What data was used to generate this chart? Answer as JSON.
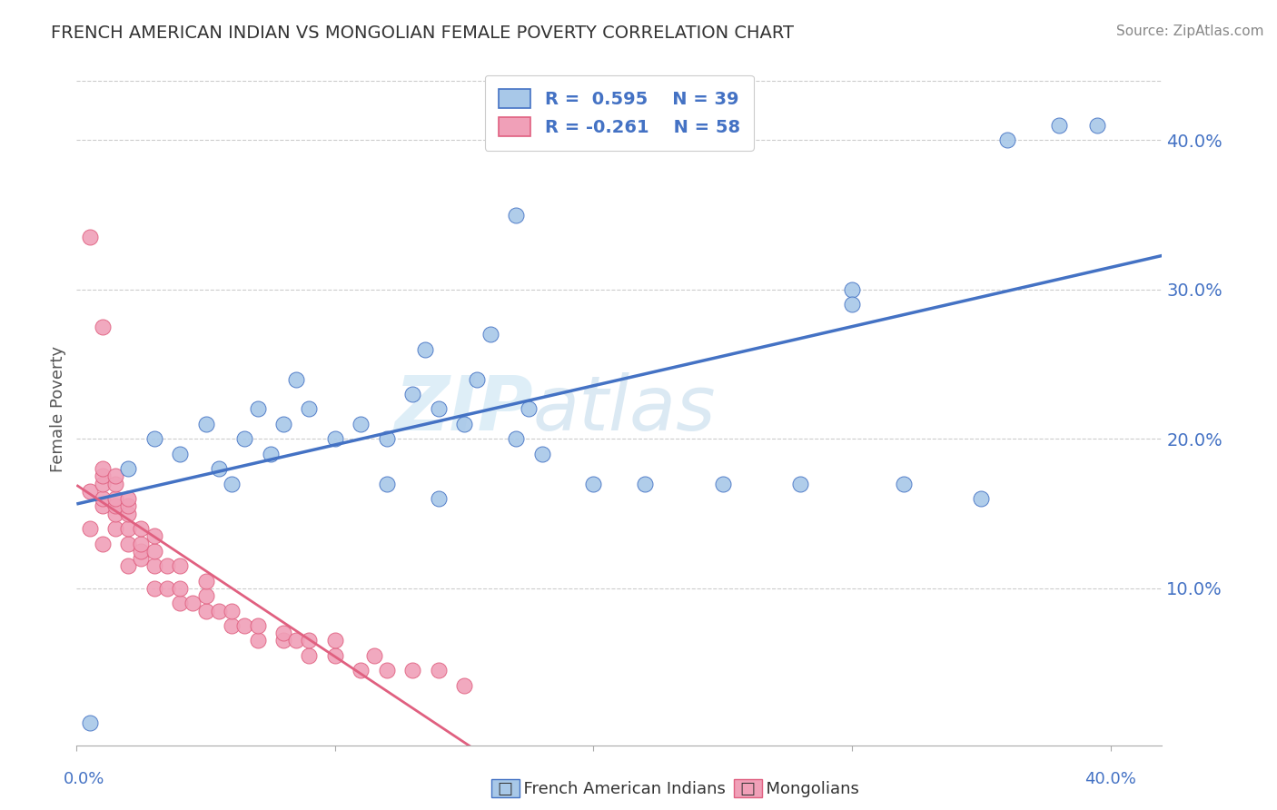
{
  "title": "FRENCH AMERICAN INDIAN VS MONGOLIAN FEMALE POVERTY CORRELATION CHART",
  "source": "Source: ZipAtlas.com",
  "ylabel": "Female Poverty",
  "xlim": [
    0.0,
    0.42
  ],
  "ylim": [
    -0.005,
    0.445
  ],
  "yticks": [
    0.1,
    0.2,
    0.3,
    0.4
  ],
  "ytick_labels": [
    "10.0%",
    "20.0%",
    "30.0%",
    "40.0%"
  ],
  "color_blue": "#A8C8E8",
  "color_pink": "#F0A0B8",
  "color_blue_line": "#4472C4",
  "color_pink_line": "#E06080",
  "color_legend_text": "#4472C4",
  "color_axis_text": "#4472C4",
  "color_title": "#333333",
  "watermark_color": "#D0E8F5",
  "background": "#FFFFFF",
  "grid_color": "#CCCCCC",
  "french_x": [
    0.005,
    0.02,
    0.03,
    0.04,
    0.05,
    0.055,
    0.06,
    0.065,
    0.07,
    0.075,
    0.08,
    0.085,
    0.09,
    0.1,
    0.11,
    0.12,
    0.13,
    0.135,
    0.14,
    0.15,
    0.155,
    0.16,
    0.17,
    0.175,
    0.18,
    0.12,
    0.14,
    0.2,
    0.22,
    0.25,
    0.28,
    0.3,
    0.32,
    0.35,
    0.36,
    0.38,
    0.395,
    0.3,
    0.17
  ],
  "french_y": [
    0.01,
    0.18,
    0.2,
    0.19,
    0.21,
    0.18,
    0.17,
    0.2,
    0.22,
    0.19,
    0.21,
    0.24,
    0.22,
    0.2,
    0.21,
    0.2,
    0.23,
    0.26,
    0.22,
    0.21,
    0.24,
    0.27,
    0.2,
    0.22,
    0.19,
    0.17,
    0.16,
    0.17,
    0.17,
    0.17,
    0.17,
    0.3,
    0.17,
    0.16,
    0.4,
    0.41,
    0.41,
    0.29,
    0.35
  ],
  "mongolian_x": [
    0.005,
    0.005,
    0.01,
    0.01,
    0.01,
    0.01,
    0.01,
    0.01,
    0.015,
    0.015,
    0.015,
    0.015,
    0.015,
    0.015,
    0.02,
    0.02,
    0.02,
    0.02,
    0.02,
    0.02,
    0.025,
    0.025,
    0.025,
    0.025,
    0.03,
    0.03,
    0.03,
    0.03,
    0.035,
    0.035,
    0.04,
    0.04,
    0.04,
    0.045,
    0.05,
    0.05,
    0.05,
    0.055,
    0.06,
    0.06,
    0.065,
    0.07,
    0.07,
    0.08,
    0.08,
    0.085,
    0.09,
    0.09,
    0.1,
    0.1,
    0.11,
    0.115,
    0.12,
    0.13,
    0.14,
    0.15,
    0.005,
    0.01
  ],
  "mongolian_y": [
    0.14,
    0.165,
    0.13,
    0.155,
    0.16,
    0.17,
    0.175,
    0.18,
    0.14,
    0.15,
    0.155,
    0.16,
    0.17,
    0.175,
    0.115,
    0.13,
    0.14,
    0.15,
    0.155,
    0.16,
    0.12,
    0.125,
    0.13,
    0.14,
    0.1,
    0.115,
    0.125,
    0.135,
    0.1,
    0.115,
    0.09,
    0.1,
    0.115,
    0.09,
    0.085,
    0.095,
    0.105,
    0.085,
    0.075,
    0.085,
    0.075,
    0.065,
    0.075,
    0.065,
    0.07,
    0.065,
    0.055,
    0.065,
    0.055,
    0.065,
    0.045,
    0.055,
    0.045,
    0.045,
    0.045,
    0.035,
    0.335,
    0.275
  ],
  "blue_line_x0": 0.0,
  "blue_line_x1": 0.42,
  "pink_line_solid_x0": 0.0,
  "pink_line_solid_x1": 0.2,
  "pink_line_dash_x0": 0.2,
  "pink_line_dash_x1": 0.42
}
